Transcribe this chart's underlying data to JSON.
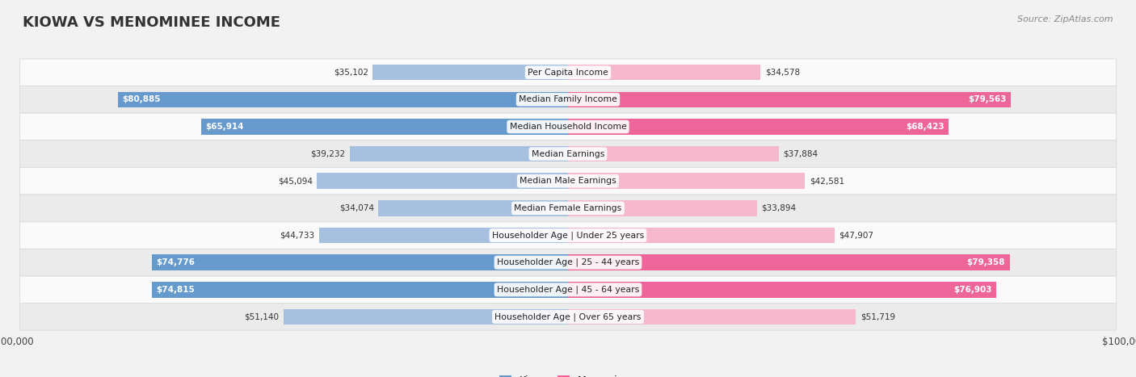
{
  "title": "KIOWA VS MENOMINEE INCOME",
  "source": "Source: ZipAtlas.com",
  "categories": [
    "Per Capita Income",
    "Median Family Income",
    "Median Household Income",
    "Median Earnings",
    "Median Male Earnings",
    "Median Female Earnings",
    "Householder Age | Under 25 years",
    "Householder Age | 25 - 44 years",
    "Householder Age | 45 - 64 years",
    "Householder Age | Over 65 years"
  ],
  "kiowa_values": [
    35102,
    80885,
    65914,
    39232,
    45094,
    34074,
    44733,
    74776,
    74815,
    51140
  ],
  "menominee_values": [
    34578,
    79563,
    68423,
    37884,
    42581,
    33894,
    47907,
    79358,
    76903,
    51719
  ],
  "kiowa_labels": [
    "$35,102",
    "$80,885",
    "$65,914",
    "$39,232",
    "$45,094",
    "$34,074",
    "$44,733",
    "$74,776",
    "$74,815",
    "$51,140"
  ],
  "menominee_labels": [
    "$34,578",
    "$79,563",
    "$68,423",
    "$37,884",
    "$42,581",
    "$33,894",
    "$47,907",
    "$79,358",
    "$76,903",
    "$51,719"
  ],
  "max_value": 100000,
  "kiowa_color_light": "#a8c0e0",
  "kiowa_color_dark": "#6699cc",
  "menominee_color_light": "#f5b8cc",
  "menominee_color_dark": "#ee6699",
  "bg_color": "#f2f2f2",
  "row_bg_even": "#fafafa",
  "row_bg_odd": "#ebebeb",
  "bar_height": 0.58,
  "threshold": 60000,
  "legend_kiowa": "Kiowa",
  "legend_menominee": "Menominee"
}
